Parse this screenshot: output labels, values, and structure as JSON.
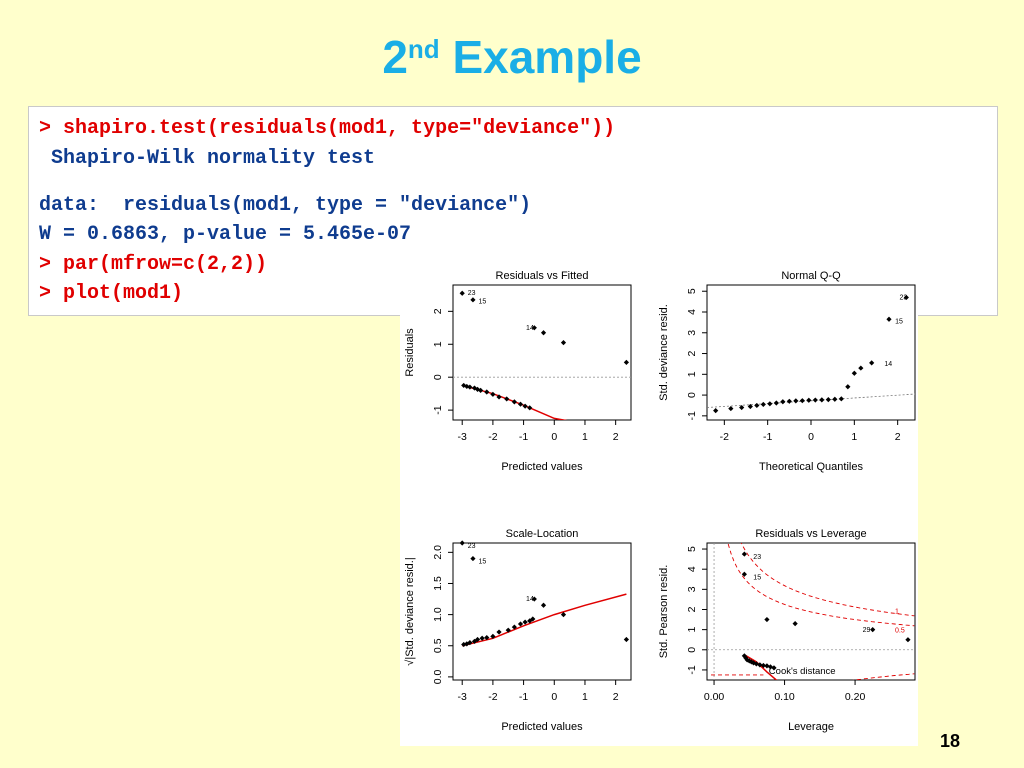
{
  "slide": {
    "title_main": "2",
    "title_sup": "nd",
    "title_rest": " Example",
    "page_number": "18"
  },
  "code_lines": [
    {
      "text": "> shapiro.test(residuals(mod1, type=\"deviance\"))",
      "kind": "cmd"
    },
    {
      "text": " Shapiro-Wilk normality test",
      "kind": "out"
    },
    {
      "text": "data:  residuals(mod1, type = \"deviance\")",
      "kind": "out"
    },
    {
      "text": "W = 0.6863, p-value = 5.465e-07",
      "kind": "out"
    },
    {
      "text": "> par(mfrow=c(2,2))",
      "kind": "cmd"
    },
    {
      "text": "> plot(mod1)",
      "kind": "cmd"
    }
  ],
  "colors": {
    "title": "#1AAEE6",
    "command": "#E00000",
    "output": "#0F3C8F",
    "smooth": "#E00000"
  },
  "chart_data": [
    {
      "type": "scatter",
      "title": "Residuals vs Fitted",
      "xlabel": "Predicted values",
      "ylabel": "Residuals",
      "xlim": [
        -3.3,
        2.5
      ],
      "ylim": [
        -1.3,
        2.8
      ],
      "xticks": [
        "-3",
        "-2",
        "-1",
        "0",
        "1",
        "2"
      ],
      "yticks": [
        "-1",
        "0",
        "1",
        "2"
      ],
      "points": [
        [
          -3.0,
          2.55
        ],
        [
          -2.65,
          2.35
        ],
        [
          -0.65,
          1.5
        ],
        [
          -0.35,
          1.35
        ],
        [
          0.3,
          1.05
        ],
        [
          2.35,
          0.45
        ],
        [
          -2.95,
          -0.25
        ],
        [
          -2.85,
          -0.28
        ],
        [
          -2.75,
          -0.3
        ],
        [
          -2.6,
          -0.33
        ],
        [
          -2.5,
          -0.37
        ],
        [
          -2.4,
          -0.4
        ],
        [
          -2.2,
          -0.45
        ],
        [
          -2.0,
          -0.52
        ],
        [
          -1.8,
          -0.6
        ],
        [
          -1.55,
          -0.66
        ],
        [
          -1.3,
          -0.75
        ],
        [
          -1.1,
          -0.82
        ],
        [
          -0.95,
          -0.88
        ],
        [
          -0.8,
          -0.93
        ]
      ],
      "labels": [
        {
          "text": "23",
          "x": -2.95,
          "y": 2.55
        },
        {
          "text": "15",
          "x": -2.6,
          "y": 2.3
        },
        {
          "text": "14",
          "x": -1.05,
          "y": 1.5
        }
      ],
      "smooth": [
        [
          -3.0,
          -0.25
        ],
        [
          -2.0,
          -0.5
        ],
        [
          -1.0,
          -0.85
        ],
        [
          0.0,
          -1.25
        ],
        [
          1.2,
          -1.45
        ]
      ],
      "refline": 0
    },
    {
      "type": "scatter",
      "title": "Normal Q-Q",
      "xlabel": "Theoretical Quantiles",
      "ylabel": "Std. deviance resid.",
      "xlim": [
        -2.4,
        2.4
      ],
      "ylim": [
        -1.2,
        5.3
      ],
      "xticks": [
        "-2",
        "-1",
        "0",
        "1",
        "2"
      ],
      "yticks": [
        "-1",
        "0",
        "1",
        "2",
        "3",
        "4",
        "5"
      ],
      "points": [
        [
          -2.2,
          -0.75
        ],
        [
          -1.85,
          -0.65
        ],
        [
          -1.6,
          -0.6
        ],
        [
          -1.4,
          -0.55
        ],
        [
          -1.25,
          -0.5
        ],
        [
          -1.1,
          -0.45
        ],
        [
          -0.95,
          -0.42
        ],
        [
          -0.8,
          -0.38
        ],
        [
          -0.65,
          -0.32
        ],
        [
          -0.5,
          -0.3
        ],
        [
          -0.35,
          -0.28
        ],
        [
          -0.2,
          -0.27
        ],
        [
          -0.05,
          -0.25
        ],
        [
          0.1,
          -0.24
        ],
        [
          0.25,
          -0.23
        ],
        [
          0.4,
          -0.22
        ],
        [
          0.55,
          -0.2
        ],
        [
          0.7,
          -0.18
        ],
        [
          0.85,
          0.4
        ],
        [
          1.0,
          1.05
        ],
        [
          1.15,
          1.3
        ],
        [
          1.4,
          1.55
        ],
        [
          1.8,
          3.65
        ],
        [
          2.2,
          4.7
        ]
      ],
      "labels": [
        {
          "text": "23",
          "x": 1.95,
          "y": 4.7
        },
        {
          "text": "15",
          "x": 1.85,
          "y": 3.55
        },
        {
          "text": "14",
          "x": 1.6,
          "y": 1.5
        }
      ],
      "refline_from": [
        -2.4,
        -0.6
      ],
      "refline_to": [
        2.4,
        0.05
      ]
    },
    {
      "type": "scatter",
      "title": "Scale-Location",
      "xlabel": "Predicted values",
      "ylabel": "√|Std. deviance resid.|",
      "xlim": [
        -3.3,
        2.5
      ],
      "ylim": [
        -0.05,
        2.15
      ],
      "xticks": [
        "-3",
        "-2",
        "-1",
        "0",
        "1",
        "2"
      ],
      "yticks": [
        "0.0",
        "0.5",
        "1.0",
        "1.5",
        "2.0"
      ],
      "points": [
        [
          -3.0,
          2.15
        ],
        [
          -2.65,
          1.9
        ],
        [
          -0.65,
          1.25
        ],
        [
          -0.35,
          1.15
        ],
        [
          0.3,
          1.0
        ],
        [
          2.35,
          0.6
        ],
        [
          -2.95,
          0.52
        ],
        [
          -2.85,
          0.53
        ],
        [
          -2.75,
          0.55
        ],
        [
          -2.6,
          0.57
        ],
        [
          -2.5,
          0.6
        ],
        [
          -2.35,
          0.62
        ],
        [
          -2.2,
          0.63
        ],
        [
          -2.0,
          0.65
        ],
        [
          -1.8,
          0.72
        ],
        [
          -1.5,
          0.75
        ],
        [
          -1.3,
          0.8
        ],
        [
          -1.1,
          0.85
        ],
        [
          -0.95,
          0.88
        ],
        [
          -0.8,
          0.9
        ],
        [
          -0.7,
          0.93
        ]
      ],
      "labels": [
        {
          "text": "23",
          "x": -2.95,
          "y": 2.1
        },
        {
          "text": "15",
          "x": -2.6,
          "y": 1.85
        },
        {
          "text": "14",
          "x": -1.05,
          "y": 1.25
        }
      ],
      "smooth": [
        [
          -3.0,
          0.5
        ],
        [
          -2.0,
          0.62
        ],
        [
          -1.0,
          0.82
        ],
        [
          0.0,
          1.0
        ],
        [
          1.0,
          1.15
        ],
        [
          2.35,
          1.33
        ]
      ]
    },
    {
      "type": "scatter",
      "title": "Residuals vs Leverage",
      "xlabel": "Leverage",
      "ylabel": "Std. Pearson resid.",
      "xlim": [
        -0.01,
        0.285
      ],
      "ylim": [
        -1.5,
        5.3
      ],
      "xticks": [
        "0.00",
        "0.10",
        "0.20"
      ],
      "yticks": [
        "-1",
        "0",
        "1",
        "2",
        "3",
        "4",
        "5"
      ],
      "points": [
        [
          0.043,
          4.75
        ],
        [
          0.043,
          3.75
        ],
        [
          0.075,
          1.5
        ],
        [
          0.115,
          1.3
        ],
        [
          0.225,
          1.0
        ],
        [
          0.275,
          0.5
        ],
        [
          0.043,
          -0.3
        ],
        [
          0.045,
          -0.4
        ],
        [
          0.047,
          -0.5
        ],
        [
          0.05,
          -0.55
        ],
        [
          0.053,
          -0.6
        ],
        [
          0.056,
          -0.65
        ],
        [
          0.06,
          -0.7
        ],
        [
          0.065,
          -0.75
        ],
        [
          0.07,
          -0.78
        ],
        [
          0.075,
          -0.8
        ],
        [
          0.08,
          -0.85
        ],
        [
          0.085,
          -0.9
        ]
      ],
      "labels": [
        {
          "text": "23",
          "x": 0.05,
          "y": 4.6
        },
        {
          "text": "15",
          "x": 0.05,
          "y": 3.6
        },
        {
          "text": "29",
          "x": 0.205,
          "y": 0.98
        }
      ],
      "smooth": [
        [
          0.043,
          -0.25
        ],
        [
          0.06,
          -0.6
        ],
        [
          0.075,
          -1.1
        ],
        [
          0.09,
          -1.55
        ]
      ],
      "cook_label": "Cook's distance",
      "cook_levels": [
        "1",
        "0.5"
      ]
    }
  ]
}
